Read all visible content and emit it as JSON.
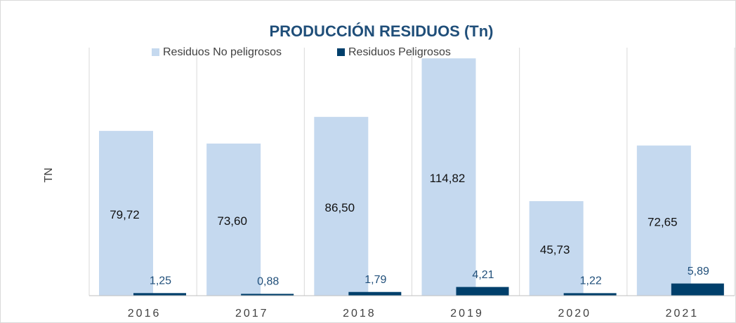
{
  "chart_data": {
    "type": "bar",
    "title": "PRODUCCIÓN  RESIDUOS (Tn)",
    "ylabel": "TN",
    "categories": [
      "2016",
      "2017",
      "2018",
      "2019",
      "2020",
      "2021"
    ],
    "series": [
      {
        "name": "Residuos No peligrosos",
        "color": "#c5d9ef",
        "values": [
          79.72,
          73.6,
          86.5,
          114.82,
          45.73,
          72.65
        ],
        "value_labels": [
          "79,72",
          "73,60",
          "86,50",
          "114,82",
          "45,73",
          "72,65"
        ]
      },
      {
        "name": "Residuos Peligrosos",
        "color": "#003f6b",
        "values": [
          1.25,
          0.88,
          1.79,
          4.21,
          1.22,
          5.89
        ],
        "value_labels": [
          "1,25",
          "0,88",
          "1,79",
          "4,21",
          "1,22",
          "5,89"
        ]
      }
    ],
    "ylim": [
      0,
      120
    ],
    "grid": true,
    "legend": "top"
  }
}
